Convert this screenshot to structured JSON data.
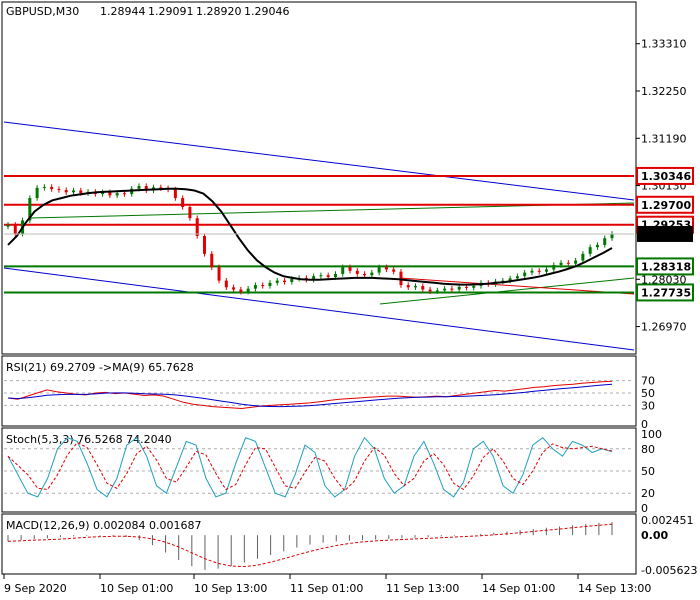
{
  "chart_data": {
    "type": "candlestick",
    "symbol_line": {
      "symbol": "GBPUSD,M30",
      "open": "1.28944",
      "high": "1.29091",
      "low": "1.28920",
      "close": "1.29046"
    },
    "price_axis": {
      "ylim": [
        1.264,
        1.342
      ],
      "ticks": [
        "1.33310",
        "1.32250",
        "1.31190",
        "1.30130",
        "1.29046",
        "1.28030",
        "1.26970"
      ],
      "tick_values": [
        1.3331,
        1.3225,
        1.3119,
        1.3013,
        1.29046,
        1.2803,
        1.2697
      ]
    },
    "levels": [
      {
        "value": 1.30346,
        "label": "1.30346",
        "color": "#e00000",
        "tag": true
      },
      {
        "value": 1.297,
        "label": "1.29700",
        "color": "#e00000",
        "tag": true
      },
      {
        "value": 1.29253,
        "label": "1.29253",
        "color": "#e00000",
        "tag": true
      },
      {
        "value": 1.28318,
        "label": "1.28318",
        "color": "#007800",
        "tag": true
      },
      {
        "value": 1.27735,
        "label": "1.27735",
        "color": "#007800",
        "tag": true
      }
    ],
    "current_price": {
      "value": 1.29046,
      "label": "1.29046"
    },
    "price_closes": [
      1.2925,
      1.2905,
      1.2935,
      1.2985,
      1.3008,
      1.301,
      1.3005,
      1.3003,
      1.2998,
      1.3002,
      1.2996,
      1.2999,
      1.2994,
      1.2998,
      1.2991,
      1.2996,
      1.2994,
      1.3006,
      1.3012,
      1.3002,
      1.3009,
      1.3007,
      1.3004,
      1.2985,
      1.2965,
      1.294,
      1.29,
      1.286,
      1.283,
      1.28,
      1.2785,
      1.278,
      1.2775,
      1.2782,
      1.279,
      1.2788,
      1.2795,
      1.28,
      1.2797,
      1.2804,
      1.2806,
      1.2802,
      1.281,
      1.2812,
      1.2808,
      1.2815,
      1.283,
      1.2822,
      1.2815,
      1.2812,
      1.2818,
      1.283,
      1.2825,
      1.282,
      1.279,
      1.2785,
      1.2788,
      1.278,
      1.2776,
      1.2778,
      1.2782,
      1.278,
      1.2786,
      1.2784,
      1.2788,
      1.2795,
      1.2792,
      1.2798,
      1.28,
      1.2805,
      1.281,
      1.2818,
      1.2822,
      1.282,
      1.2825,
      1.2835,
      1.284,
      1.2838,
      1.2845,
      1.286,
      1.2875,
      1.288,
      1.2895,
      1.2905
    ],
    "price_ma": [
      1.288,
      1.29,
      1.293,
      1.2955,
      1.297,
      1.298,
      1.2985,
      1.299,
      1.2993,
      1.2996,
      1.2998,
      1.2999,
      1.3,
      1.3001,
      1.3002,
      1.3003,
      1.3004,
      1.3005,
      1.3006,
      1.3006,
      1.3005,
      1.3002,
      1.2995,
      1.2978,
      1.2955,
      1.2925,
      1.2895,
      1.2868,
      1.2846,
      1.283,
      1.2818,
      1.281,
      1.2806,
      1.2803,
      1.2802,
      1.2802,
      1.2803,
      1.2804,
      1.2805,
      1.2806,
      1.2806,
      1.2806,
      1.2805,
      1.2804,
      1.2803,
      1.2801,
      1.2799,
      1.2797,
      1.2795,
      1.2793,
      1.2792,
      1.2791,
      1.2791,
      1.2792,
      1.2793,
      1.2795,
      1.2797,
      1.28,
      1.2803,
      1.2806,
      1.281,
      1.2815,
      1.282,
      1.2826,
      1.2833,
      1.2842,
      1.2852,
      1.2862,
      1.2873
    ],
    "rsi": {
      "title": "RSI(21) 69.2709  ->MA(9) 65.7628",
      "levels": [
        "70",
        "50",
        "30",
        "0"
      ],
      "ylim": [
        0,
        100
      ],
      "values": [
        42,
        40,
        45,
        50,
        55,
        52,
        50,
        48,
        47,
        50,
        51,
        49,
        50,
        48,
        46,
        47,
        45,
        40,
        35,
        32,
        30,
        28,
        27,
        26,
        25,
        27,
        29,
        30,
        31,
        32,
        33,
        34,
        36,
        38,
        40,
        41,
        42,
        43,
        44,
        45,
        45,
        44,
        43,
        44,
        45,
        44,
        46,
        48,
        50,
        52,
        54,
        53,
        55,
        57,
        59,
        60,
        62,
        63,
        64,
        66,
        67,
        68,
        69
      ]
    },
    "stoch": {
      "title": "Stoch(5,3,3) 76.5268 74.2040",
      "levels": [
        "100",
        "80",
        "50",
        "20",
        "0"
      ],
      "ylim": [
        0,
        100
      ],
      "values": [
        70,
        45,
        20,
        15,
        40,
        80,
        95,
        90,
        60,
        25,
        15,
        40,
        85,
        95,
        70,
        30,
        20,
        55,
        90,
        85,
        40,
        15,
        20,
        60,
        95,
        90,
        55,
        20,
        15,
        45,
        85,
        75,
        30,
        15,
        25,
        70,
        95,
        80,
        40,
        20,
        30,
        70,
        90,
        60,
        25,
        15,
        35,
        80,
        90,
        70,
        30,
        20,
        45,
        85,
        95,
        80,
        70,
        90,
        85,
        75,
        80,
        76
      ]
    },
    "macd": {
      "title": "MACD(12,26,9) 0.002084 0.001687",
      "levels": [
        "0.002451",
        "0.00",
        "-0.005623"
      ],
      "ylim": [
        -0.005623,
        0.002451
      ],
      "histogram": [
        -0.001,
        -0.0008,
        -0.0006,
        -0.0005,
        -0.0003,
        -0.0002,
        -0.0001,
        -0.0001,
        -0.0002,
        -0.0003,
        -0.0008,
        -0.0016,
        -0.0028,
        -0.004,
        -0.005,
        -0.0056,
        -0.0054,
        -0.005,
        -0.0044,
        -0.0038,
        -0.0032,
        -0.0026,
        -0.002,
        -0.0015,
        -0.0012,
        -0.001,
        -0.0009,
        -0.0008,
        -0.0007,
        -0.0006,
        -0.0005,
        -0.0004,
        -0.0003,
        -0.0002,
        -0.0001,
        0.0,
        0.0002,
        0.0004,
        0.0006,
        0.0008,
        0.001,
        0.0012,
        0.0014,
        0.0016,
        0.0018,
        0.002,
        0.0021
      ]
    },
    "x_labels": [
      "9 Sep 2020",
      "10 Sep 01:00",
      "10 Sep 13:00",
      "11 Sep 01:00",
      "11 Sep 13:00",
      "14 Sep 01:00",
      "14 Sep 13:00"
    ],
    "colors": {
      "bull": "#007800",
      "bear": "#e00000",
      "trend_blue": "#0000cc",
      "ma": "#000000",
      "rsi": "#0000cc",
      "signal": "#e00000",
      "stoch_main": "#20a0c0",
      "macd_hist": "#606060"
    }
  }
}
